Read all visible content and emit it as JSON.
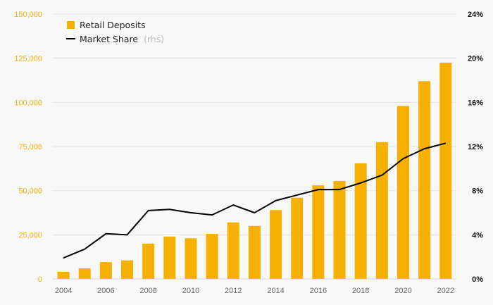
{
  "chart_data": {
    "type": "bar",
    "categories": [
      "2004",
      "2005",
      "2006",
      "2007",
      "2008",
      "2009",
      "2010",
      "2011",
      "2012",
      "2013",
      "2014",
      "2015",
      "2016",
      "2017",
      "2018",
      "2019",
      "2020",
      "2021",
      "2022"
    ],
    "x_tick_labels": [
      "2004",
      "2006",
      "2008",
      "2010",
      "2012",
      "2014",
      "2016",
      "2018",
      "2020",
      "2022"
    ],
    "series": [
      {
        "name": "Retail Deposits",
        "type": "bar",
        "axis": "left",
        "values": [
          4000,
          6000,
          9500,
          10500,
          20000,
          24000,
          23000,
          25500,
          32000,
          30000,
          39000,
          46000,
          53000,
          55500,
          65500,
          77500,
          98000,
          112000,
          122500
        ]
      },
      {
        "name": "Market Share",
        "name_suffix": "(rhs)",
        "type": "line",
        "axis": "right",
        "values": [
          1.9,
          2.7,
          4.1,
          4.0,
          6.2,
          6.3,
          6.0,
          5.8,
          6.7,
          6.0,
          7.1,
          7.6,
          8.1,
          8.1,
          8.7,
          9.4,
          10.9,
          11.8,
          12.3
        ]
      }
    ],
    "y_left": {
      "lim": [
        0,
        150000
      ],
      "tick_labels": [
        "0",
        "25,000",
        "50,000",
        "75,000",
        "100,000",
        "125,000",
        "150,000"
      ]
    },
    "y_right": {
      "lim": [
        0,
        24
      ],
      "tick_labels": [
        "0%",
        "4%",
        "8%",
        "12%",
        "16%",
        "20%",
        "24%"
      ]
    },
    "grid": true,
    "legend_position": "top-left",
    "colors": {
      "bar": "#f5b000",
      "line": "#000000",
      "left_axis_text": "#f5b000",
      "grid": "#e6e6e6"
    }
  }
}
